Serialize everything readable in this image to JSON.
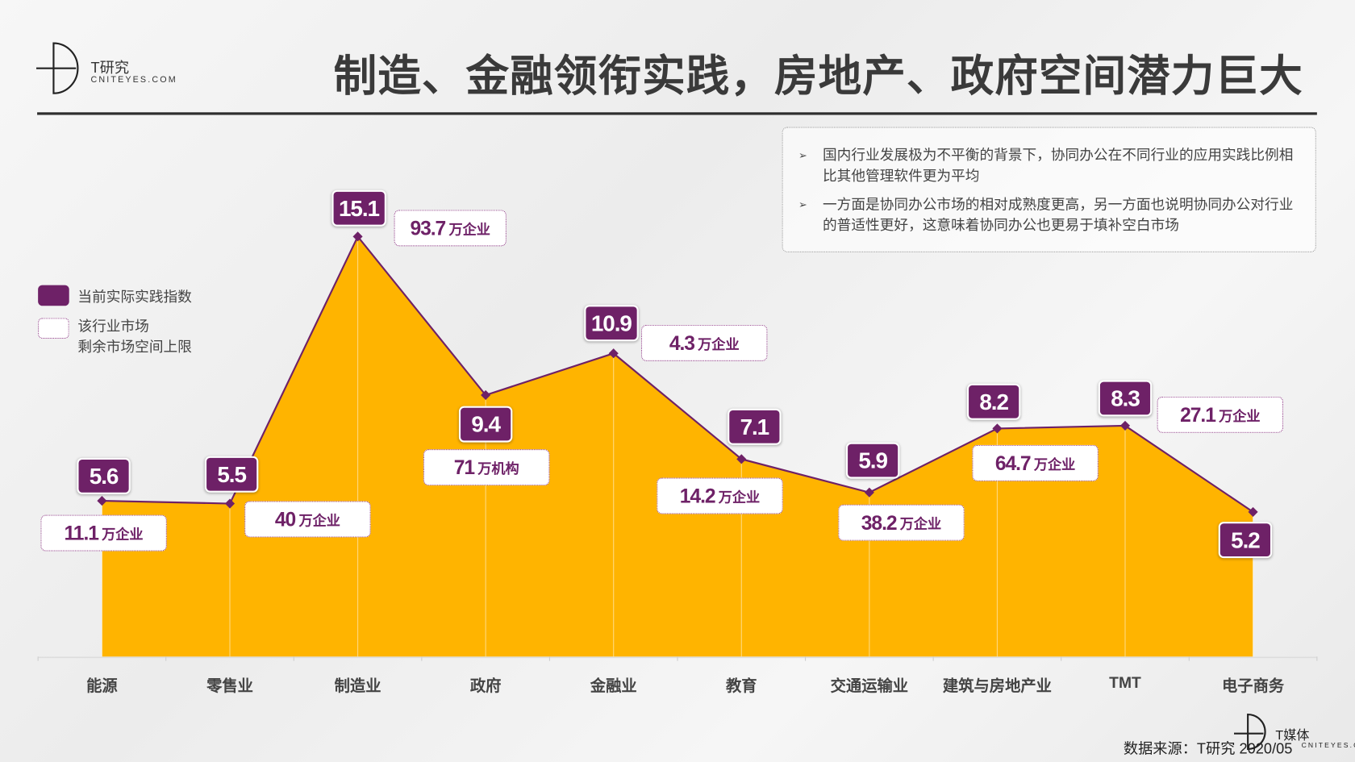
{
  "header": {
    "logo_text": "T研究",
    "logo_sub": "CNITEYES.COM",
    "title": "制造、金融领衔实践，房地产、政府空间潜力巨大"
  },
  "notes": [
    "国内行业发展极为不平衡的背景下，协同办公在不同行业的应用实践比例相比其他管理软件更为平均",
    "一方面是协同办公市场的相对成熟度更高，另一方面也说明协同办公对行业的普适性更好，这意味着协同办公也更易于填补空白市场"
  ],
  "legend": {
    "index": "当前实际实践指数",
    "market_line1": "该行业市场",
    "market_line2": "剩余市场空间上限"
  },
  "chart_data": {
    "type": "area",
    "title": "制造、金融领衔实践，房地产、政府空间潜力巨大",
    "categories": [
      "能源",
      "零售业",
      "制造业",
      "政府",
      "金融业",
      "教育",
      "交通运输业",
      "建筑与房地产业",
      "TMT",
      "电子商务"
    ],
    "series": [
      {
        "name": "当前实际实践指数",
        "values": [
          5.6,
          5.5,
          15.1,
          9.4,
          10.9,
          7.1,
          5.9,
          8.2,
          8.3,
          5.2
        ]
      }
    ],
    "market_space": [
      {
        "value": "11.1",
        "unit": "万企业"
      },
      {
        "value": "40",
        "unit": "万企业"
      },
      {
        "value": "93.7",
        "unit": "万企业"
      },
      {
        "value": "71",
        "unit": "万机构"
      },
      {
        "value": "4.3",
        "unit": "万企业"
      },
      {
        "value": "14.2",
        "unit": "万企业"
      },
      {
        "value": "38.2",
        "unit": "万企业"
      },
      {
        "value": "64.7",
        "unit": "万企业"
      },
      {
        "value": "27.1",
        "unit": "万企业"
      },
      null
    ],
    "ylim": [
      0,
      16
    ],
    "colors": {
      "area": "#FFB400",
      "line": "#6E2167",
      "badge": "#6E2167"
    }
  },
  "footer": {
    "source": "数据来源：T研究 2020/05",
    "brand": "T媒体",
    "brand_sub": "CNITEYES.COM"
  }
}
